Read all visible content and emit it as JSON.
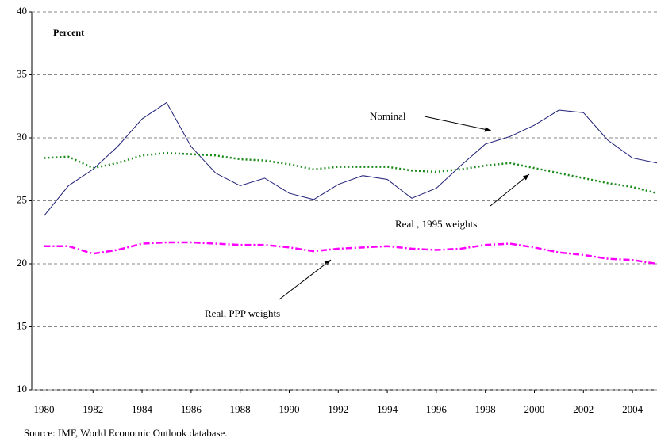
{
  "chart_data": {
    "type": "line",
    "annotations": {
      "unit": "Percent",
      "nominal": "Nominal",
      "real_1995": "Real , 1995 weights",
      "real_ppp": "Real, PPP weights",
      "source": "Source: IMF, World Economic Outlook database."
    },
    "x": [
      1980,
      1981,
      1982,
      1983,
      1984,
      1985,
      1986,
      1987,
      1988,
      1989,
      1990,
      1991,
      1992,
      1993,
      1994,
      1995,
      1996,
      1997,
      1998,
      1999,
      2000,
      2001,
      2002,
      2003,
      2004,
      2005
    ],
    "xlim": [
      1979.5,
      2005
    ],
    "xticks": [
      1980,
      1982,
      1984,
      1986,
      1988,
      1990,
      1992,
      1994,
      1996,
      1998,
      2000,
      2002,
      2004
    ],
    "ylim": [
      10,
      40
    ],
    "yticks": [
      10,
      15,
      20,
      25,
      30,
      35,
      40
    ],
    "grid": true,
    "series": [
      {
        "name": "Nominal",
        "color": "#1f1f78",
        "line_style": "solid",
        "values": [
          23.8,
          26.2,
          27.5,
          29.3,
          31.5,
          32.8,
          29.3,
          27.2,
          26.2,
          26.8,
          25.6,
          25.1,
          26.3,
          27.0,
          26.7,
          25.2,
          26.0,
          27.8,
          29.5,
          30.1,
          31.0,
          32.2,
          32.0,
          29.8,
          28.4,
          28.0
        ]
      },
      {
        "name": "Real , 1995 weights",
        "color": "#1a8a1a",
        "line_style": "dotted",
        "values": [
          28.4,
          28.5,
          27.6,
          28.0,
          28.6,
          28.8,
          28.7,
          28.6,
          28.3,
          28.2,
          27.9,
          27.5,
          27.7,
          27.7,
          27.7,
          27.4,
          27.3,
          27.5,
          27.8,
          28.0,
          27.6,
          27.2,
          26.8,
          26.4,
          26.1,
          25.6
        ]
      },
      {
        "name": "Real, PPP weights",
        "color": "#ff00ff",
        "line_style": "dashdot",
        "values": [
          21.4,
          21.4,
          20.8,
          21.1,
          21.6,
          21.7,
          21.7,
          21.6,
          21.5,
          21.5,
          21.3,
          21.0,
          21.2,
          21.3,
          21.4,
          21.2,
          21.1,
          21.2,
          21.5,
          21.6,
          21.3,
          20.9,
          20.7,
          20.4,
          20.3,
          20.0
        ]
      }
    ]
  }
}
